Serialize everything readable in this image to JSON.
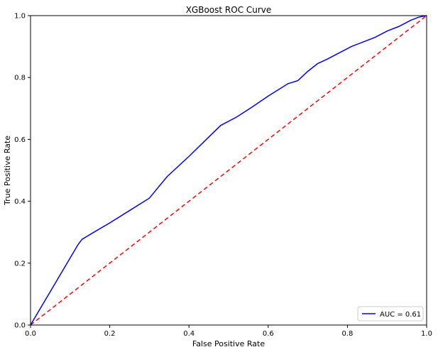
{
  "chart_data": {
    "type": "line",
    "title": "XGBoost ROC Curve",
    "xlabel": "False Positive Rate",
    "ylabel": "True Positive Rate",
    "xlim": [
      0.0,
      1.0
    ],
    "ylim": [
      0.0,
      1.0
    ],
    "x_ticks": [
      "0.0",
      "0.2",
      "0.4",
      "0.6",
      "0.8",
      "1.0"
    ],
    "y_ticks": [
      "0.0",
      "0.2",
      "0.4",
      "0.6",
      "0.8",
      "1.0"
    ],
    "grid": false,
    "legend_position": "lower-right",
    "series": [
      {
        "name": "AUC = 0.61",
        "color": "#0000ff",
        "style": "solid",
        "x": [
          0.0,
          0.03,
          0.06,
          0.09,
          0.12,
          0.13,
          0.16,
          0.2,
          0.25,
          0.3,
          0.345,
          0.4,
          0.44,
          0.48,
          0.52,
          0.56,
          0.6,
          0.65,
          0.675,
          0.7,
          0.725,
          0.75,
          0.78,
          0.81,
          0.84,
          0.87,
          0.9,
          0.93,
          0.96,
          0.98,
          1.0
        ],
        "y": [
          0.0,
          0.065,
          0.13,
          0.195,
          0.26,
          0.277,
          0.3,
          0.33,
          0.37,
          0.41,
          0.48,
          0.545,
          0.595,
          0.645,
          0.672,
          0.705,
          0.74,
          0.78,
          0.79,
          0.82,
          0.845,
          0.86,
          0.88,
          0.9,
          0.915,
          0.93,
          0.95,
          0.965,
          0.985,
          0.995,
          1.0
        ]
      },
      {
        "name": "",
        "color": "#ff0000",
        "style": "dashed",
        "x": [
          0.0,
          1.0
        ],
        "y": [
          0.0,
          1.0
        ]
      }
    ],
    "legend": [
      "AUC = 0.61"
    ]
  }
}
